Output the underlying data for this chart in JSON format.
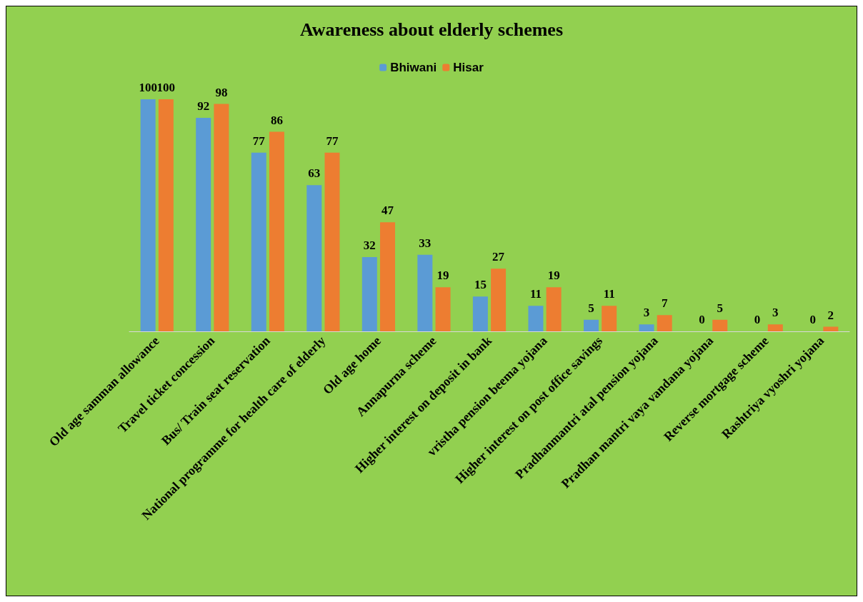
{
  "chart_data": {
    "type": "bar",
    "title": "Awareness about elderly schemes",
    "categories": [
      "Old age samman allowance",
      "Travel ticket concession",
      "Bus/ Train seat reservation",
      "National programme for health care of elderly",
      "Old age home",
      "Annapurna scheme",
      "Higher interest on deposit in bank",
      "vristha pension beema yojana",
      "Higher interest on post office savings",
      "Pradhanmantri atal pension yojana",
      "Pradhan mantri vaya vandana yojana",
      "Reverse mortgage scheme",
      "Rashtriya vyoshri yojana"
    ],
    "series": [
      {
        "name": "Bhiwani",
        "color": "#5b9bd5",
        "values": [
          100,
          92,
          77,
          63,
          32,
          33,
          15,
          11,
          5,
          3,
          0,
          0,
          0
        ]
      },
      {
        "name": "Hisar",
        "color": "#ed7d31",
        "values": [
          100,
          98,
          86,
          77,
          47,
          19,
          27,
          19,
          11,
          7,
          5,
          3,
          2
        ]
      }
    ],
    "data_labels": true,
    "legend": "top",
    "grid": false
  }
}
